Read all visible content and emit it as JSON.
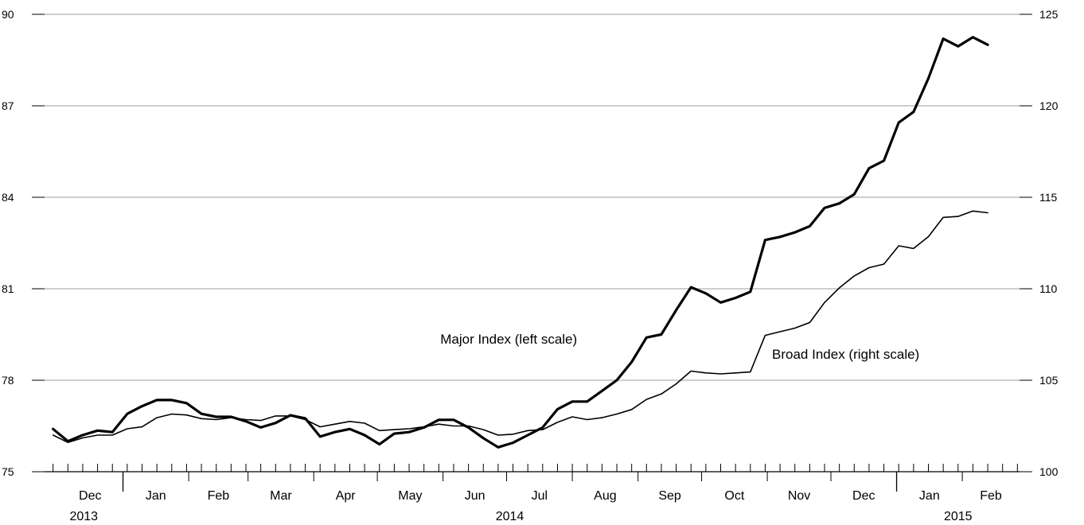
{
  "chart_data": {
    "type": "line",
    "title": "",
    "xlabel": "",
    "grid": "horizontal",
    "left_axis": {
      "ylim": [
        75,
        90
      ],
      "ticks": [
        75,
        78,
        81,
        84,
        87,
        90
      ],
      "tick_labels": [
        "75",
        "78",
        "81",
        "84",
        "87",
        "90"
      ]
    },
    "right_axis": {
      "ylim": [
        100,
        125
      ],
      "ticks": [
        100,
        105,
        110,
        115,
        120,
        125
      ],
      "tick_labels": [
        "100",
        "105",
        "110",
        "115",
        "120",
        "125"
      ]
    },
    "month_labels": [
      "Dec",
      "Jan",
      "Feb",
      "Mar",
      "Apr",
      "May",
      "Jun",
      "Jul",
      "Aug",
      "Sep",
      "Oct",
      "Nov",
      "Dec",
      "Jan",
      "Feb"
    ],
    "year_labels": [
      "2013",
      "2014",
      "2015"
    ],
    "x_range": [
      "2013-11-25",
      "2015-02-28"
    ],
    "series": [
      {
        "name": "Major Index (left scale)",
        "axis": "left",
        "style": "thick",
        "x": [
          "2013-11-29",
          "2013-12-06",
          "2013-12-13",
          "2013-12-20",
          "2013-12-27",
          "2014-01-03",
          "2014-01-10",
          "2014-01-17",
          "2014-01-24",
          "2014-01-31",
          "2014-02-07",
          "2014-02-14",
          "2014-02-21",
          "2014-02-28",
          "2014-03-07",
          "2014-03-14",
          "2014-03-21",
          "2014-03-28",
          "2014-04-04",
          "2014-04-11",
          "2014-04-18",
          "2014-04-25",
          "2014-05-02",
          "2014-05-09",
          "2014-05-16",
          "2014-05-23",
          "2014-05-30",
          "2014-06-06",
          "2014-06-13",
          "2014-06-20",
          "2014-06-27",
          "2014-07-04",
          "2014-07-11",
          "2014-07-18",
          "2014-07-25",
          "2014-08-01",
          "2014-08-08",
          "2014-08-15",
          "2014-08-22",
          "2014-08-29",
          "2014-09-05",
          "2014-09-12",
          "2014-09-19",
          "2014-09-26",
          "2014-10-03",
          "2014-10-10",
          "2014-10-17",
          "2014-10-24",
          "2014-10-31",
          "2014-11-07",
          "2014-11-14",
          "2014-11-21",
          "2014-11-28",
          "2014-12-05",
          "2014-12-12",
          "2014-12-19",
          "2014-12-26",
          "2015-01-02",
          "2015-01-09",
          "2015-01-16",
          "2015-01-23",
          "2015-01-30",
          "2015-02-06",
          "2015-02-13",
          "2015-02-20"
        ],
        "values": [
          76.4,
          76.0,
          76.2,
          76.35,
          76.3,
          76.9,
          77.15,
          77.35,
          77.35,
          77.25,
          76.9,
          76.8,
          76.8,
          76.65,
          76.45,
          76.6,
          76.85,
          76.75,
          76.15,
          76.3,
          76.4,
          76.2,
          75.9,
          76.25,
          76.3,
          76.45,
          76.7,
          76.7,
          76.45,
          76.1,
          75.8,
          75.95,
          76.2,
          76.45,
          77.05,
          77.3,
          77.3,
          77.65,
          78.0,
          78.6,
          79.4,
          79.5,
          80.3,
          81.05,
          80.85,
          80.55,
          80.7,
          80.9,
          82.6,
          82.7,
          82.85,
          83.05,
          83.65,
          83.8,
          84.1,
          84.95,
          85.2,
          86.45,
          86.8,
          87.9,
          89.2,
          88.95,
          89.25,
          89.0,
          null
        ]
      },
      {
        "name": "Broad Index (right scale)",
        "axis": "right",
        "style": "thin",
        "x": [
          "2013-11-29",
          "2013-12-06",
          "2013-12-13",
          "2013-12-20",
          "2013-12-27",
          "2014-01-03",
          "2014-01-10",
          "2014-01-17",
          "2014-01-24",
          "2014-01-31",
          "2014-02-07",
          "2014-02-14",
          "2014-02-21",
          "2014-02-28",
          "2014-03-07",
          "2014-03-14",
          "2014-03-21",
          "2014-03-28",
          "2014-04-04",
          "2014-04-11",
          "2014-04-18",
          "2014-04-25",
          "2014-05-02",
          "2014-05-09",
          "2014-05-16",
          "2014-05-23",
          "2014-05-30",
          "2014-06-06",
          "2014-06-13",
          "2014-06-20",
          "2014-06-27",
          "2014-07-04",
          "2014-07-11",
          "2014-07-18",
          "2014-07-25",
          "2014-08-01",
          "2014-08-08",
          "2014-08-15",
          "2014-08-22",
          "2014-08-29",
          "2014-09-05",
          "2014-09-12",
          "2014-09-19",
          "2014-09-26",
          "2014-10-03",
          "2014-10-10",
          "2014-10-17",
          "2014-10-24",
          "2014-10-31",
          "2014-11-07",
          "2014-11-14",
          "2014-11-21",
          "2014-11-28",
          "2014-12-05",
          "2014-12-12",
          "2014-12-19",
          "2014-12-26",
          "2015-01-02",
          "2015-01-09",
          "2015-01-16",
          "2015-01-23",
          "2015-01-30",
          "2015-02-06",
          "2015-02-13",
          "2015-02-20"
        ],
        "values": [
          102.0,
          101.6,
          101.85,
          102.0,
          102.0,
          102.35,
          102.45,
          102.95,
          103.15,
          103.1,
          102.9,
          102.85,
          102.95,
          102.85,
          102.8,
          103.05,
          103.05,
          102.85,
          102.45,
          102.6,
          102.75,
          102.65,
          102.25,
          102.3,
          102.35,
          102.45,
          102.6,
          102.5,
          102.5,
          102.3,
          102.0,
          102.05,
          102.25,
          102.3,
          102.7,
          103.0,
          102.85,
          102.95,
          103.15,
          103.4,
          103.95,
          104.25,
          104.8,
          105.5,
          105.4,
          105.35,
          105.4,
          105.45,
          107.45,
          107.65,
          107.85,
          108.15,
          109.25,
          110.05,
          110.7,
          111.15,
          111.35,
          112.35,
          112.2,
          112.85,
          113.9,
          113.95,
          114.25,
          114.15,
          null
        ]
      }
    ],
    "annotations": [
      {
        "text": "Major Index (left scale)",
        "anchor_date": "2014-07-02",
        "anchor_value_left": 79.2
      },
      {
        "text": "Broad Index (right scale)",
        "anchor_date": "2014-12-08",
        "anchor_value_left": 78.7
      }
    ]
  }
}
